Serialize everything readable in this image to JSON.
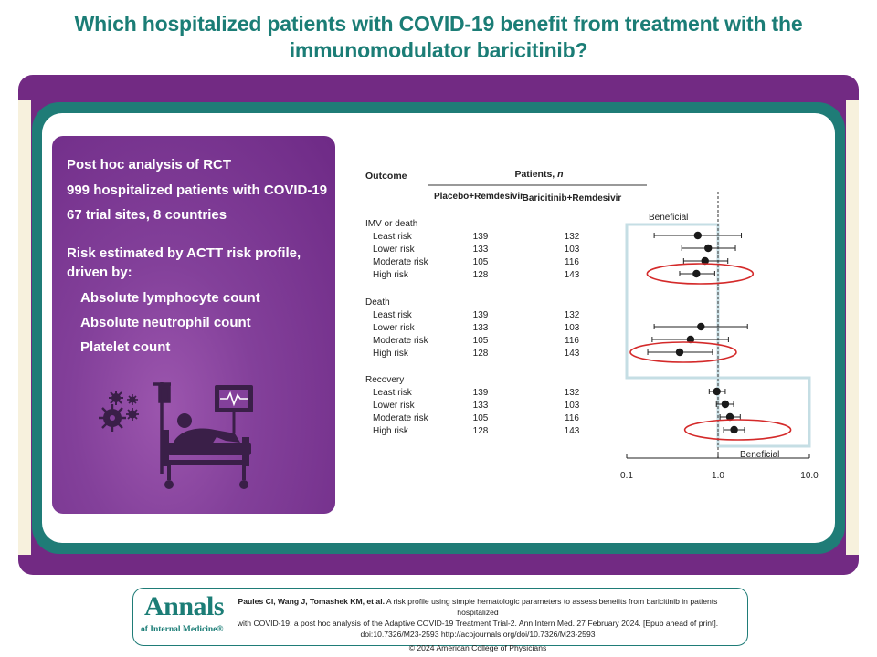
{
  "title": {
    "line1": "Which hospitalized patients with COVID-19 benefit from treatment with the",
    "line2": "immunomodulator baricitinib?"
  },
  "panel": {
    "line1": "Post hoc analysis of RCT",
    "line2": "999 hospitalized patients with COVID-19",
    "line3": "67 trial sites, 8 countries",
    "risk_intro1": "Risk estimated by ACTT risk profile,",
    "risk_intro2": "driven by:",
    "drivers": [
      "Absolute lymphocyte count",
      "Absolute neutrophil count",
      "Platelet count"
    ],
    "illustration_icons": [
      "virus-icon",
      "hospital-bed-icon",
      "iv-drip-icon",
      "heart-monitor-icon"
    ]
  },
  "colors": {
    "title_teal": "#1b7d76",
    "band_purple": "#722a83",
    "frame_teal": "#1f7c77",
    "highlight_red": "#d42a2a",
    "beneficial_box": "#c5dee4"
  },
  "chart_data": {
    "type": "forest",
    "title": "",
    "header": {
      "outcome": "Outcome",
      "patients": "Patients, ",
      "patients_n": "n",
      "col_placebo": "Placebo+Remdesivir",
      "col_baricitinib": "Baricitinib+Remdesivir"
    },
    "x_axis": {
      "scale": "log",
      "ticks": [
        0.1,
        1.0,
        10.0
      ],
      "tick_labels": [
        "0.1",
        "1.0",
        "10.0"
      ],
      "reference": 1.0
    },
    "beneficial_label": "Beneficial",
    "groups": [
      {
        "name": "IMV or death",
        "beneficial_side": "left",
        "rows": [
          {
            "label": "Least risk",
            "placebo_n": "139",
            "baricitinib_n": "132",
            "est": 0.6,
            "lo": 0.2,
            "hi": 1.8,
            "highlight": false
          },
          {
            "label": "Lower risk",
            "placebo_n": "133",
            "baricitinib_n": "103",
            "est": 0.78,
            "lo": 0.4,
            "hi": 1.55,
            "highlight": false
          },
          {
            "label": "Moderate risk",
            "placebo_n": "105",
            "baricitinib_n": "116",
            "est": 0.72,
            "lo": 0.42,
            "hi": 1.28,
            "highlight": false
          },
          {
            "label": "High risk",
            "placebo_n": "128",
            "baricitinib_n": "143",
            "est": 0.58,
            "lo": 0.38,
            "hi": 0.92,
            "highlight": true
          }
        ]
      },
      {
        "name": "Death",
        "beneficial_side": "left",
        "rows": [
          {
            "label": "Least risk",
            "placebo_n": "139",
            "baricitinib_n": "132",
            "est": null,
            "lo": null,
            "hi": null,
            "highlight": false
          },
          {
            "label": "Lower risk",
            "placebo_n": "133",
            "baricitinib_n": "103",
            "est": 0.65,
            "lo": 0.2,
            "hi": 2.1,
            "highlight": false
          },
          {
            "label": "Moderate risk",
            "placebo_n": "105",
            "baricitinib_n": "116",
            "est": 0.5,
            "lo": 0.19,
            "hi": 1.3,
            "highlight": false
          },
          {
            "label": "High risk",
            "placebo_n": "128",
            "baricitinib_n": "143",
            "est": 0.38,
            "lo": 0.17,
            "hi": 0.87,
            "highlight": true
          }
        ]
      },
      {
        "name": "Recovery",
        "beneficial_side": "right",
        "rows": [
          {
            "label": "Least risk",
            "placebo_n": "139",
            "baricitinib_n": "132",
            "est": 0.97,
            "lo": 0.8,
            "hi": 1.2,
            "highlight": false
          },
          {
            "label": "Lower risk",
            "placebo_n": "133",
            "baricitinib_n": "103",
            "est": 1.2,
            "lo": 0.96,
            "hi": 1.48,
            "highlight": false
          },
          {
            "label": "Moderate risk",
            "placebo_n": "105",
            "baricitinib_n": "116",
            "est": 1.35,
            "lo": 1.05,
            "hi": 1.75,
            "highlight": false
          },
          {
            "label": "High risk",
            "placebo_n": "128",
            "baricitinib_n": "143",
            "est": 1.5,
            "lo": 1.15,
            "hi": 1.95,
            "highlight": true
          }
        ]
      }
    ]
  },
  "citation": {
    "logo_line1": "Annals",
    "logo_line2": "of Internal Medicine",
    "logo_reg": "®",
    "authors": "Paules CI, Wang J, Tomashek KM, et al.",
    "line1_rest": " A risk profile using simple hematologic parameters to assess benefits from baricitinib in patients hospitalized",
    "line2": "with COVID-19: a post hoc analysis of the Adaptive COVID-19 Treatment Trial-2. Ann Intern Med. 27 February 2024. [Epub ahead of print].",
    "line3": "doi:10.7326/M23-2593 http://acpjournals.org/doi/10.7326/M23-2593",
    "copyright": "© 2024 American College of Physicians"
  }
}
